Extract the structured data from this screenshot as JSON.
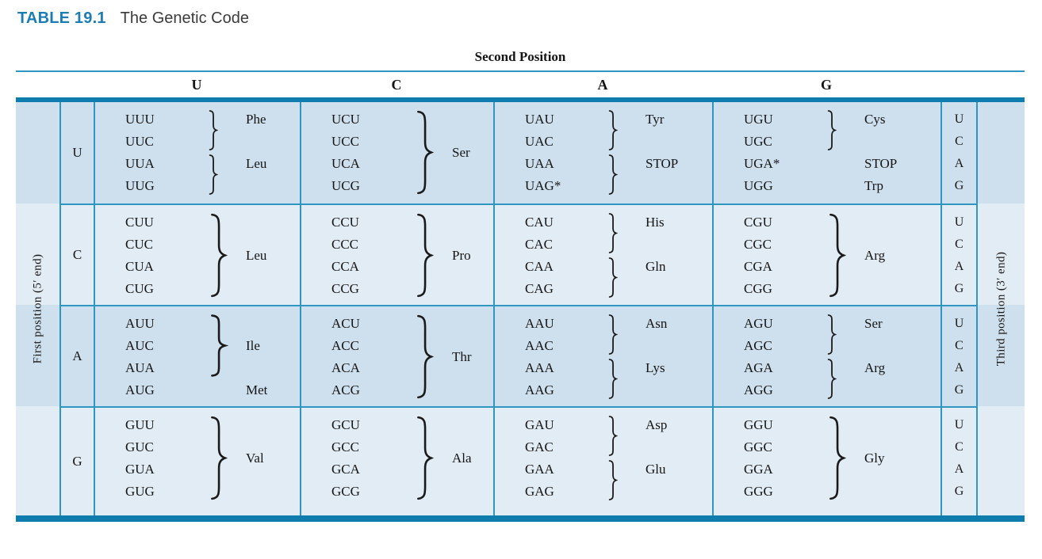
{
  "title": {
    "label": "TABLE 19.1",
    "text": "The Genetic Code"
  },
  "header": {
    "second_position": "Second Position",
    "letters": [
      "U",
      "C",
      "A",
      "G"
    ]
  },
  "axes": {
    "first_position": "First position (5′ end)",
    "third_position": "Third position (3′ end)"
  },
  "colors": {
    "accent": "#1b7db4",
    "line": "#2f96c2",
    "bar": "#0e7dae",
    "row_dark": "#cee0ee",
    "row_light": "#e2ecf5",
    "ink": "#151515"
  },
  "table": {
    "rows": [
      {
        "letter": "U",
        "cells": [
          {
            "codons": [
              "UUU",
              "UUC",
              "UUA",
              "UUG"
            ],
            "marks": [
              {
                "label": "Phe",
                "line": 0,
                "brace": [
                  0,
                  2
                ]
              },
              {
                "label": "Leu",
                "line": 2,
                "brace": [
                  2,
                  2
                ]
              }
            ]
          },
          {
            "codons": [
              "UCU",
              "UCC",
              "UCA",
              "UCG"
            ],
            "marks": [
              {
                "label": "Ser",
                "line": 1.5,
                "brace": [
                  0,
                  4
                ]
              }
            ]
          },
          {
            "codons": [
              "UAU",
              "UAC",
              "UAA",
              "UAG*"
            ],
            "marks": [
              {
                "label": "Tyr",
                "line": 0,
                "brace": [
                  0,
                  2
                ]
              },
              {
                "label": "STOP",
                "line": 2,
                "brace": [
                  2,
                  2
                ]
              }
            ]
          },
          {
            "codons": [
              "UGU",
              "UGC",
              "UGA*",
              "UGG"
            ],
            "marks": [
              {
                "label": "Cys",
                "line": 0,
                "brace": [
                  0,
                  2
                ]
              },
              {
                "label": "STOP",
                "line": 2,
                "brace": null
              },
              {
                "label": "Trp",
                "line": 3,
                "brace": null
              }
            ]
          }
        ],
        "third": [
          "U",
          "C",
          "A",
          "G"
        ]
      },
      {
        "letter": "C",
        "cells": [
          {
            "codons": [
              "CUU",
              "CUC",
              "CUA",
              "CUG"
            ],
            "marks": [
              {
                "label": "Leu",
                "line": 1.5,
                "brace": [
                  0,
                  4
                ]
              }
            ]
          },
          {
            "codons": [
              "CCU",
              "CCC",
              "CCA",
              "CCG"
            ],
            "marks": [
              {
                "label": "Pro",
                "line": 1.5,
                "brace": [
                  0,
                  4
                ]
              }
            ]
          },
          {
            "codons": [
              "CAU",
              "CAC",
              "CAA",
              "CAG"
            ],
            "marks": [
              {
                "label": "His",
                "line": 0,
                "brace": [
                  0,
                  2
                ]
              },
              {
                "label": "Gln",
                "line": 2,
                "brace": [
                  2,
                  2
                ]
              }
            ]
          },
          {
            "codons": [
              "CGU",
              "CGC",
              "CGA",
              "CGG"
            ],
            "marks": [
              {
                "label": "Arg",
                "line": 1.5,
                "brace": [
                  0,
                  4
                ]
              }
            ]
          }
        ],
        "third": [
          "U",
          "C",
          "A",
          "G"
        ]
      },
      {
        "letter": "A",
        "cells": [
          {
            "codons": [
              "AUU",
              "AUC",
              "AUA",
              "AUG"
            ],
            "marks": [
              {
                "label": "Ile",
                "line": 1,
                "brace": [
                  0,
                  3
                ]
              },
              {
                "label": "Met",
                "line": 3,
                "brace": null
              }
            ]
          },
          {
            "codons": [
              "ACU",
              "ACC",
              "ACA",
              "ACG"
            ],
            "marks": [
              {
                "label": "Thr",
                "line": 1.5,
                "brace": [
                  0,
                  4
                ]
              }
            ]
          },
          {
            "codons": [
              "AAU",
              "AAC",
              "AAA",
              "AAG"
            ],
            "marks": [
              {
                "label": "Asn",
                "line": 0,
                "brace": [
                  0,
                  2
                ]
              },
              {
                "label": "Lys",
                "line": 2,
                "brace": [
                  2,
                  2
                ]
              }
            ]
          },
          {
            "codons": [
              "AGU",
              "AGC",
              "AGA",
              "AGG"
            ],
            "marks": [
              {
                "label": "Ser",
                "line": 0,
                "brace": [
                  0,
                  2
                ]
              },
              {
                "label": "Arg",
                "line": 2,
                "brace": [
                  2,
                  2
                ]
              }
            ]
          }
        ],
        "third": [
          "U",
          "C",
          "A",
          "G"
        ]
      },
      {
        "letter": "G",
        "cells": [
          {
            "codons": [
              "GUU",
              "GUC",
              "GUA",
              "GUG"
            ],
            "marks": [
              {
                "label": "Val",
                "line": 1.5,
                "brace": [
                  0,
                  4
                ]
              }
            ]
          },
          {
            "codons": [
              "GCU",
              "GCC",
              "GCA",
              "GCG"
            ],
            "marks": [
              {
                "label": "Ala",
                "line": 1.5,
                "brace": [
                  0,
                  4
                ]
              }
            ]
          },
          {
            "codons": [
              "GAU",
              "GAC",
              "GAA",
              "GAG"
            ],
            "marks": [
              {
                "label": "Asp",
                "line": 0,
                "brace": [
                  0,
                  2
                ]
              },
              {
                "label": "Glu",
                "line": 2,
                "brace": [
                  2,
                  2
                ]
              }
            ]
          },
          {
            "codons": [
              "GGU",
              "GGC",
              "GGA",
              "GGG"
            ],
            "marks": [
              {
                "label": "Gly",
                "line": 1.5,
                "brace": [
                  0,
                  4
                ]
              }
            ]
          }
        ],
        "third": [
          "U",
          "C",
          "A",
          "G"
        ]
      }
    ]
  }
}
